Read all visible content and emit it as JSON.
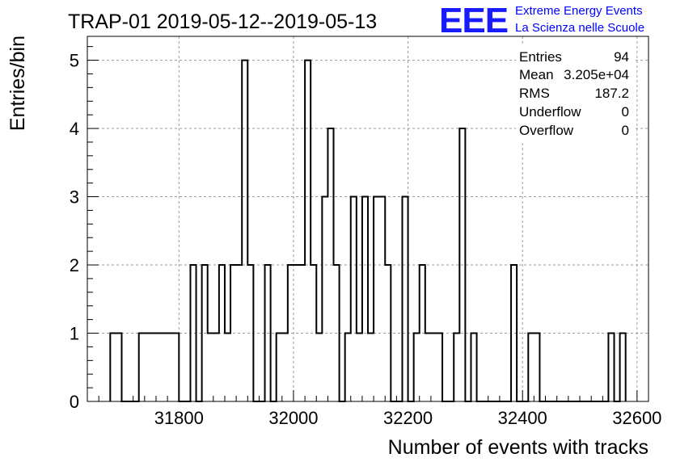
{
  "title": "TRAP-01 2019-05-12--2019-05-13",
  "logo": {
    "mark": "EEE",
    "line1": "Extreme Energy Events",
    "line2": "La Scienza nelle Scuole",
    "color": "#1a1aff"
  },
  "stats": {
    "entries_label": "Entries",
    "entries_value": "94",
    "mean_label": "Mean",
    "mean_value": "3.205e+04",
    "rms_label": "RMS",
    "rms_value": "187.2",
    "underflow_label": "Underflow",
    "underflow_value": "0",
    "overflow_label": "Overflow",
    "overflow_value": "0"
  },
  "chart_data": {
    "type": "histogram",
    "title": "TRAP-01 2019-05-12--2019-05-13",
    "xlabel": "Number of events with tracks",
    "ylabel": "Entries/bin",
    "xlim": [
      31640,
      32620
    ],
    "ylim": [
      0,
      5.35
    ],
    "grid": true,
    "x_ticks": [
      31800,
      32000,
      32200,
      32400,
      32600
    ],
    "y_ticks": [
      0,
      1,
      2,
      3,
      4,
      5
    ],
    "bin_width": 10,
    "bins": [
      {
        "x0": 31680,
        "count": 1
      },
      {
        "x0": 31690,
        "count": 1
      },
      {
        "x0": 31700,
        "count": 0
      },
      {
        "x0": 31710,
        "count": 0
      },
      {
        "x0": 31720,
        "count": 0
      },
      {
        "x0": 31730,
        "count": 1
      },
      {
        "x0": 31740,
        "count": 1
      },
      {
        "x0": 31750,
        "count": 1
      },
      {
        "x0": 31760,
        "count": 1
      },
      {
        "x0": 31770,
        "count": 1
      },
      {
        "x0": 31780,
        "count": 1
      },
      {
        "x0": 31790,
        "count": 1
      },
      {
        "x0": 31800,
        "count": 0
      },
      {
        "x0": 31810,
        "count": 0
      },
      {
        "x0": 31820,
        "count": 2
      },
      {
        "x0": 31830,
        "count": 0
      },
      {
        "x0": 31840,
        "count": 2
      },
      {
        "x0": 31850,
        "count": 1
      },
      {
        "x0": 31860,
        "count": 1
      },
      {
        "x0": 31870,
        "count": 2
      },
      {
        "x0": 31880,
        "count": 1
      },
      {
        "x0": 31890,
        "count": 2
      },
      {
        "x0": 31900,
        "count": 2
      },
      {
        "x0": 31910,
        "count": 5
      },
      {
        "x0": 31920,
        "count": 2
      },
      {
        "x0": 31930,
        "count": 0
      },
      {
        "x0": 31940,
        "count": 0
      },
      {
        "x0": 31950,
        "count": 2
      },
      {
        "x0": 31960,
        "count": 0
      },
      {
        "x0": 31970,
        "count": 1
      },
      {
        "x0": 31980,
        "count": 1
      },
      {
        "x0": 31990,
        "count": 2
      },
      {
        "x0": 32000,
        "count": 2
      },
      {
        "x0": 32010,
        "count": 2
      },
      {
        "x0": 32020,
        "count": 5
      },
      {
        "x0": 32030,
        "count": 2
      },
      {
        "x0": 32040,
        "count": 1
      },
      {
        "x0": 32050,
        "count": 3
      },
      {
        "x0": 32060,
        "count": 4
      },
      {
        "x0": 32070,
        "count": 2
      },
      {
        "x0": 32080,
        "count": 0
      },
      {
        "x0": 32090,
        "count": 1
      },
      {
        "x0": 32100,
        "count": 3
      },
      {
        "x0": 32110,
        "count": 1
      },
      {
        "x0": 32120,
        "count": 3
      },
      {
        "x0": 32130,
        "count": 1
      },
      {
        "x0": 32140,
        "count": 3
      },
      {
        "x0": 32150,
        "count": 3
      },
      {
        "x0": 32160,
        "count": 2
      },
      {
        "x0": 32170,
        "count": 0
      },
      {
        "x0": 32180,
        "count": 0
      },
      {
        "x0": 32190,
        "count": 3
      },
      {
        "x0": 32200,
        "count": 0
      },
      {
        "x0": 32210,
        "count": 1
      },
      {
        "x0": 32220,
        "count": 2
      },
      {
        "x0": 32230,
        "count": 1
      },
      {
        "x0": 32240,
        "count": 1
      },
      {
        "x0": 32250,
        "count": 1
      },
      {
        "x0": 32260,
        "count": 0
      },
      {
        "x0": 32270,
        "count": 0
      },
      {
        "x0": 32280,
        "count": 1
      },
      {
        "x0": 32290,
        "count": 4
      },
      {
        "x0": 32300,
        "count": 0
      },
      {
        "x0": 32310,
        "count": 1
      },
      {
        "x0": 32320,
        "count": 0
      },
      {
        "x0": 32330,
        "count": 0
      },
      {
        "x0": 32340,
        "count": 0
      },
      {
        "x0": 32350,
        "count": 0
      },
      {
        "x0": 32360,
        "count": 0
      },
      {
        "x0": 32370,
        "count": 0
      },
      {
        "x0": 32380,
        "count": 2
      },
      {
        "x0": 32390,
        "count": 0
      },
      {
        "x0": 32400,
        "count": 0
      },
      {
        "x0": 32410,
        "count": 1
      },
      {
        "x0": 32420,
        "count": 1
      },
      {
        "x0": 32430,
        "count": 0
      },
      {
        "x0": 32440,
        "count": 0
      },
      {
        "x0": 32450,
        "count": 0
      },
      {
        "x0": 32460,
        "count": 0
      },
      {
        "x0": 32470,
        "count": 0
      },
      {
        "x0": 32480,
        "count": 0
      },
      {
        "x0": 32490,
        "count": 0
      },
      {
        "x0": 32500,
        "count": 0
      },
      {
        "x0": 32510,
        "count": 0
      },
      {
        "x0": 32520,
        "count": 0
      },
      {
        "x0": 32530,
        "count": 0
      },
      {
        "x0": 32540,
        "count": 0
      },
      {
        "x0": 32550,
        "count": 1
      },
      {
        "x0": 32560,
        "count": 0
      },
      {
        "x0": 32570,
        "count": 1
      }
    ]
  }
}
